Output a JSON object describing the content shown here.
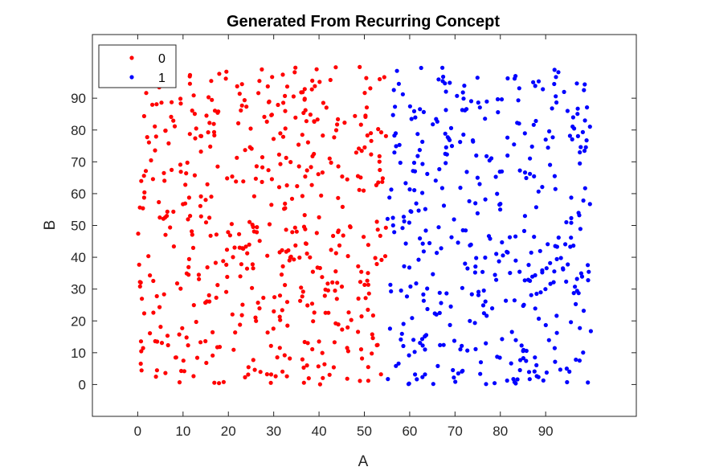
{
  "chart_data": {
    "type": "scatter",
    "title": "Generated From Recurring Concept",
    "xlabel": "A",
    "ylabel": "B",
    "xlim": [
      -10,
      110
    ],
    "ylim": [
      -10,
      110
    ],
    "xticks": [
      0,
      10,
      20,
      30,
      40,
      50,
      60,
      70,
      80,
      90
    ],
    "yticks": [
      0,
      10,
      20,
      30,
      40,
      50,
      60,
      70,
      80,
      90
    ],
    "legend": {
      "position": "top-left",
      "entries": [
        {
          "label": "0",
          "color": "#ff0000"
        },
        {
          "label": "1",
          "color": "#0000ff"
        }
      ]
    },
    "series": [
      {
        "name": "0",
        "color": "#ff0000",
        "description": "Class 0 points: roughly uniformly spread over A in [0, 55], B in [0, 100]",
        "x_range": [
          0,
          55
        ],
        "y_range": [
          0,
          100
        ],
        "count": 500
      },
      {
        "name": "1",
        "color": "#0000ff",
        "description": "Class 1 points: roughly uniformly spread over A in [55, 100], B in [0, 100]",
        "x_range": [
          55,
          100
        ],
        "y_range": [
          0,
          100
        ],
        "count": 400
      }
    ]
  }
}
